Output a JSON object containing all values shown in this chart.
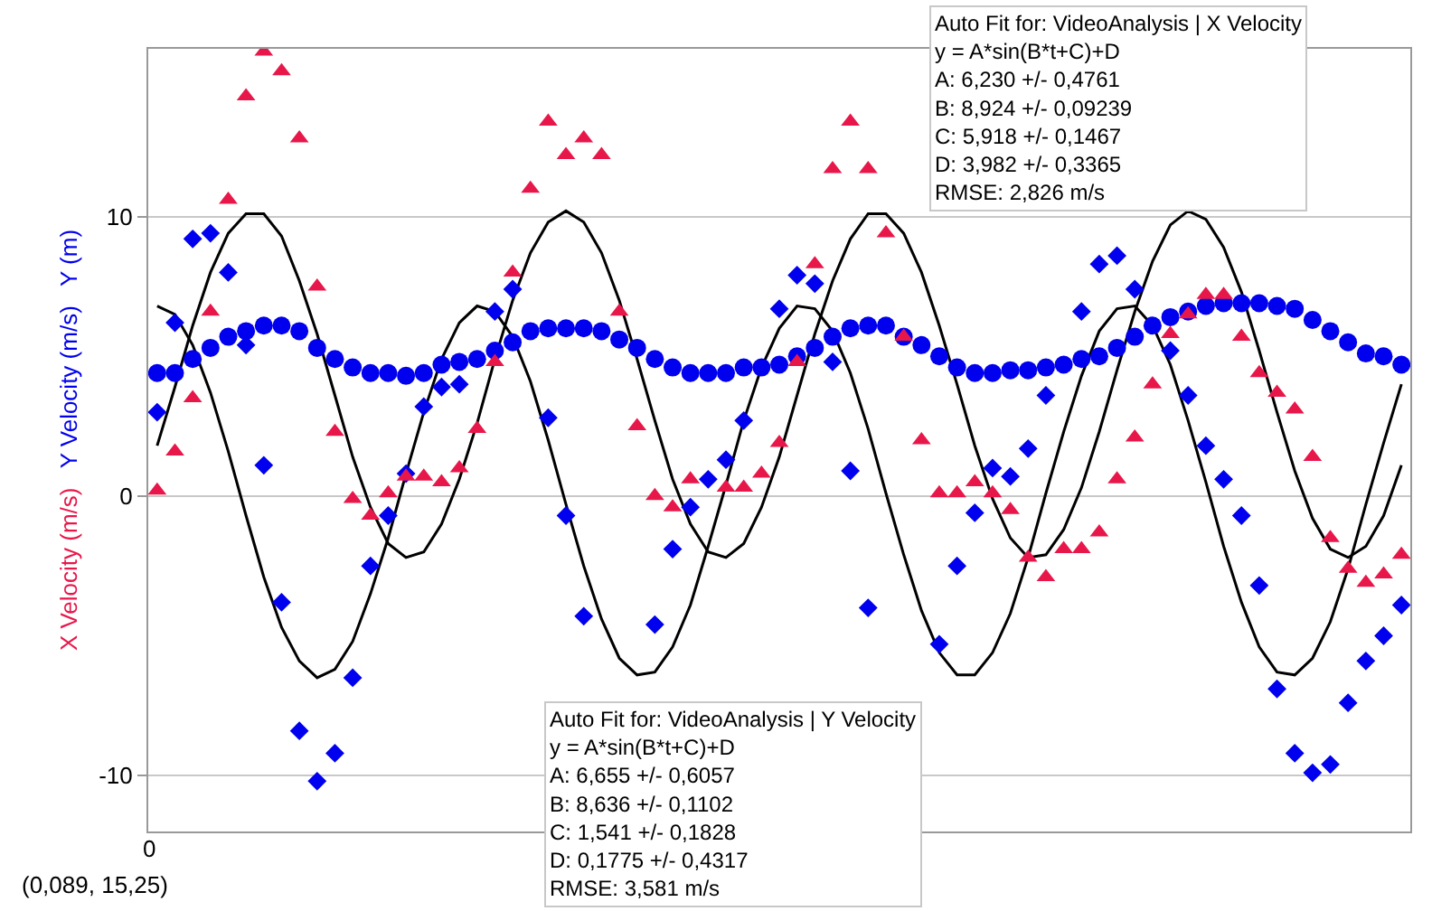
{
  "chart_data": {
    "type": "scatter",
    "legend": false,
    "grid": "y",
    "categories": [
      null,
      null,
      null,
      null,
      null,
      null,
      null,
      null,
      null,
      null,
      null,
      null,
      null,
      null,
      null,
      null,
      null,
      null,
      null,
      null,
      null,
      null,
      null,
      null,
      null,
      null,
      null,
      null,
      null,
      null,
      null,
      null,
      null,
      null,
      null,
      null,
      null,
      null,
      null,
      null,
      null,
      null,
      null,
      null,
      null,
      null,
      null,
      null,
      null,
      null,
      null,
      null,
      null,
      null,
      null,
      null,
      null,
      null,
      null,
      null,
      null,
      null,
      null,
      null,
      null,
      null,
      null,
      null,
      null,
      null,
      null
    ],
    "ylim": [
      -12,
      16
    ],
    "yticks": [
      -10,
      0,
      10
    ],
    "annotations": [
      "Auto Fit for: VideoAnalysis | X Velocity\ny = A*sin(B*t+C)+D\nA: 6,230 +/- 0,4761\nB: 8,924 +/- 0,09239\nC: 5,918 +/- 0,1467\nD: 3,982 +/- 0,3365\nRMSE: 2,826 m/s",
      "Auto Fit for: VideoAnalysis | Y Velocity\ny = A*sin(B*t+C)+D\nA: 6,655 +/- 0,6057\nB: 8,636 +/- 0,1102\nC: 1,541 +/- 0,1828\nD: 0,1775 +/- 0,4317\nRMSE: 3,581 m/s",
      "(0,089, 15,25)",
      "0"
    ],
    "series": [
      {
        "name": "X Velocity (m/s)",
        "type": "scatter",
        "marker": "triangle",
        "color": "#e8174a",
        "values": [
          0.2,
          1.6,
          3.5,
          6.6,
          10.6,
          14.3,
          15.9,
          15.2,
          12.8,
          7.5,
          2.3,
          -0.1,
          -0.7,
          0.1,
          0.7,
          0.7,
          0.5,
          1.0,
          2.4,
          4.8,
          8.0,
          11.0,
          13.4,
          12.2,
          12.8,
          12.2,
          6.6,
          2.5,
          0.0,
          -0.4,
          0.6,
          null,
          0.3,
          0.3,
          0.8,
          1.9,
          4.8,
          8.3,
          11.7,
          13.4,
          11.7,
          9.4,
          5.7,
          2.0,
          0.1,
          0.1,
          0.5,
          0.1,
          -0.5,
          -2.2,
          -2.9,
          -1.9,
          -1.9,
          -1.3,
          0.6,
          2.1,
          4.0,
          5.8,
          6.5,
          7.2,
          7.2,
          5.7,
          4.4,
          3.7,
          3.1,
          1.4,
          -1.5,
          -2.6,
          -3.1,
          -2.8,
          -2.1
        ]
      },
      {
        "name": "Y Velocity (m/s)",
        "type": "scatter",
        "marker": "diamond",
        "color": "#0000ee",
        "values": [
          3.0,
          6.2,
          9.2,
          9.4,
          8.0,
          5.4,
          1.1,
          -3.8,
          -8.4,
          -10.2,
          -9.2,
          -6.5,
          -2.5,
          -0.7,
          0.8,
          3.2,
          3.9,
          4.0,
          null,
          6.6,
          7.4,
          null,
          2.8,
          -0.7,
          -4.3,
          null,
          null,
          null,
          -4.6,
          -1.9,
          -0.4,
          0.6,
          1.3,
          2.7,
          null,
          6.7,
          7.9,
          7.6,
          4.8,
          0.9,
          -4.0,
          null,
          null,
          null,
          -5.3,
          -2.5,
          -0.6,
          1.0,
          0.7,
          1.7,
          3.6,
          null,
          6.6,
          8.3,
          8.6,
          7.4,
          null,
          5.2,
          3.6,
          1.8,
          0.6,
          -0.7,
          -3.2,
          -6.9,
          -9.2,
          -9.9,
          -9.6,
          -7.4,
          -5.9,
          -5.0,
          -3.9
        ]
      },
      {
        "name": "Y (m)",
        "type": "scatter",
        "marker": "circle",
        "color": "#0000ee",
        "values": [
          4.4,
          4.4,
          4.9,
          5.3,
          5.7,
          5.9,
          6.1,
          6.1,
          5.9,
          5.3,
          4.9,
          4.6,
          4.4,
          4.4,
          4.3,
          4.4,
          4.7,
          4.8,
          4.9,
          5.2,
          5.5,
          5.9,
          6.0,
          6.0,
          6.0,
          5.9,
          5.6,
          5.3,
          4.9,
          4.6,
          4.4,
          4.4,
          4.4,
          4.6,
          4.6,
          4.7,
          5.0,
          5.3,
          5.7,
          6.0,
          6.1,
          6.1,
          5.7,
          5.4,
          5.0,
          4.6,
          4.4,
          4.4,
          4.5,
          4.5,
          4.6,
          4.7,
          4.9,
          5.0,
          5.3,
          5.7,
          6.1,
          6.4,
          6.6,
          6.8,
          6.9,
          6.9,
          6.9,
          6.8,
          6.7,
          6.3,
          5.9,
          5.5,
          5.1,
          5.0,
          4.7
        ]
      },
      {
        "type": "line",
        "marker": "none",
        "color": "#000000",
        "values": [
          1.8,
          3.9,
          6.1,
          8.0,
          9.4,
          10.1,
          10.1,
          9.3,
          7.7,
          5.8,
          3.6,
          1.4,
          -0.4,
          -1.7,
          -2.2,
          -2.0,
          -1.0,
          0.6,
          2.6,
          4.9,
          7.0,
          8.7,
          9.8,
          10.2,
          9.8,
          8.7,
          7.0,
          4.9,
          2.7,
          0.6,
          -1.0,
          -2.0,
          -2.2,
          -1.7,
          -0.4,
          1.4,
          3.6,
          5.8,
          7.7,
          9.2,
          10.1,
          10.1,
          9.4,
          8.0,
          6.1,
          4.0,
          1.8,
          -0.1,
          -1.5,
          -2.2,
          -2.1,
          -1.2,
          0.3,
          2.3,
          4.5,
          6.6,
          8.4,
          9.7,
          10.2,
          9.9,
          8.9,
          7.3,
          5.2,
          3.0,
          0.9,
          -0.8,
          -1.9,
          -2.2,
          -1.8,
          -0.7,
          1.1
        ]
      },
      {
        "type": "line",
        "marker": "none",
        "color": "#000000",
        "values": [
          6.8,
          6.5,
          5.4,
          3.7,
          1.6,
          -0.7,
          -2.9,
          -4.7,
          -5.9,
          -6.5,
          -6.2,
          -5.2,
          -3.5,
          -1.5,
          0.8,
          3.0,
          4.9,
          6.2,
          6.8,
          6.6,
          5.7,
          4.1,
          2.0,
          -0.3,
          -2.5,
          -4.4,
          -5.8,
          -6.4,
          -6.3,
          -5.4,
          -3.9,
          -1.8,
          0.4,
          2.7,
          4.6,
          6.0,
          6.8,
          6.7,
          5.9,
          4.4,
          2.4,
          0.1,
          -2.1,
          -4.1,
          -5.6,
          -6.4,
          -6.4,
          -5.6,
          -4.2,
          -2.2,
          0.1,
          2.3,
          4.3,
          5.9,
          6.7,
          6.8,
          6.1,
          4.7,
          2.7,
          0.5,
          -1.8,
          -3.8,
          -5.4,
          -6.3,
          -6.4,
          -5.8,
          -4.5,
          -2.6,
          -0.3,
          1.9,
          4.0
        ]
      }
    ]
  }
}
